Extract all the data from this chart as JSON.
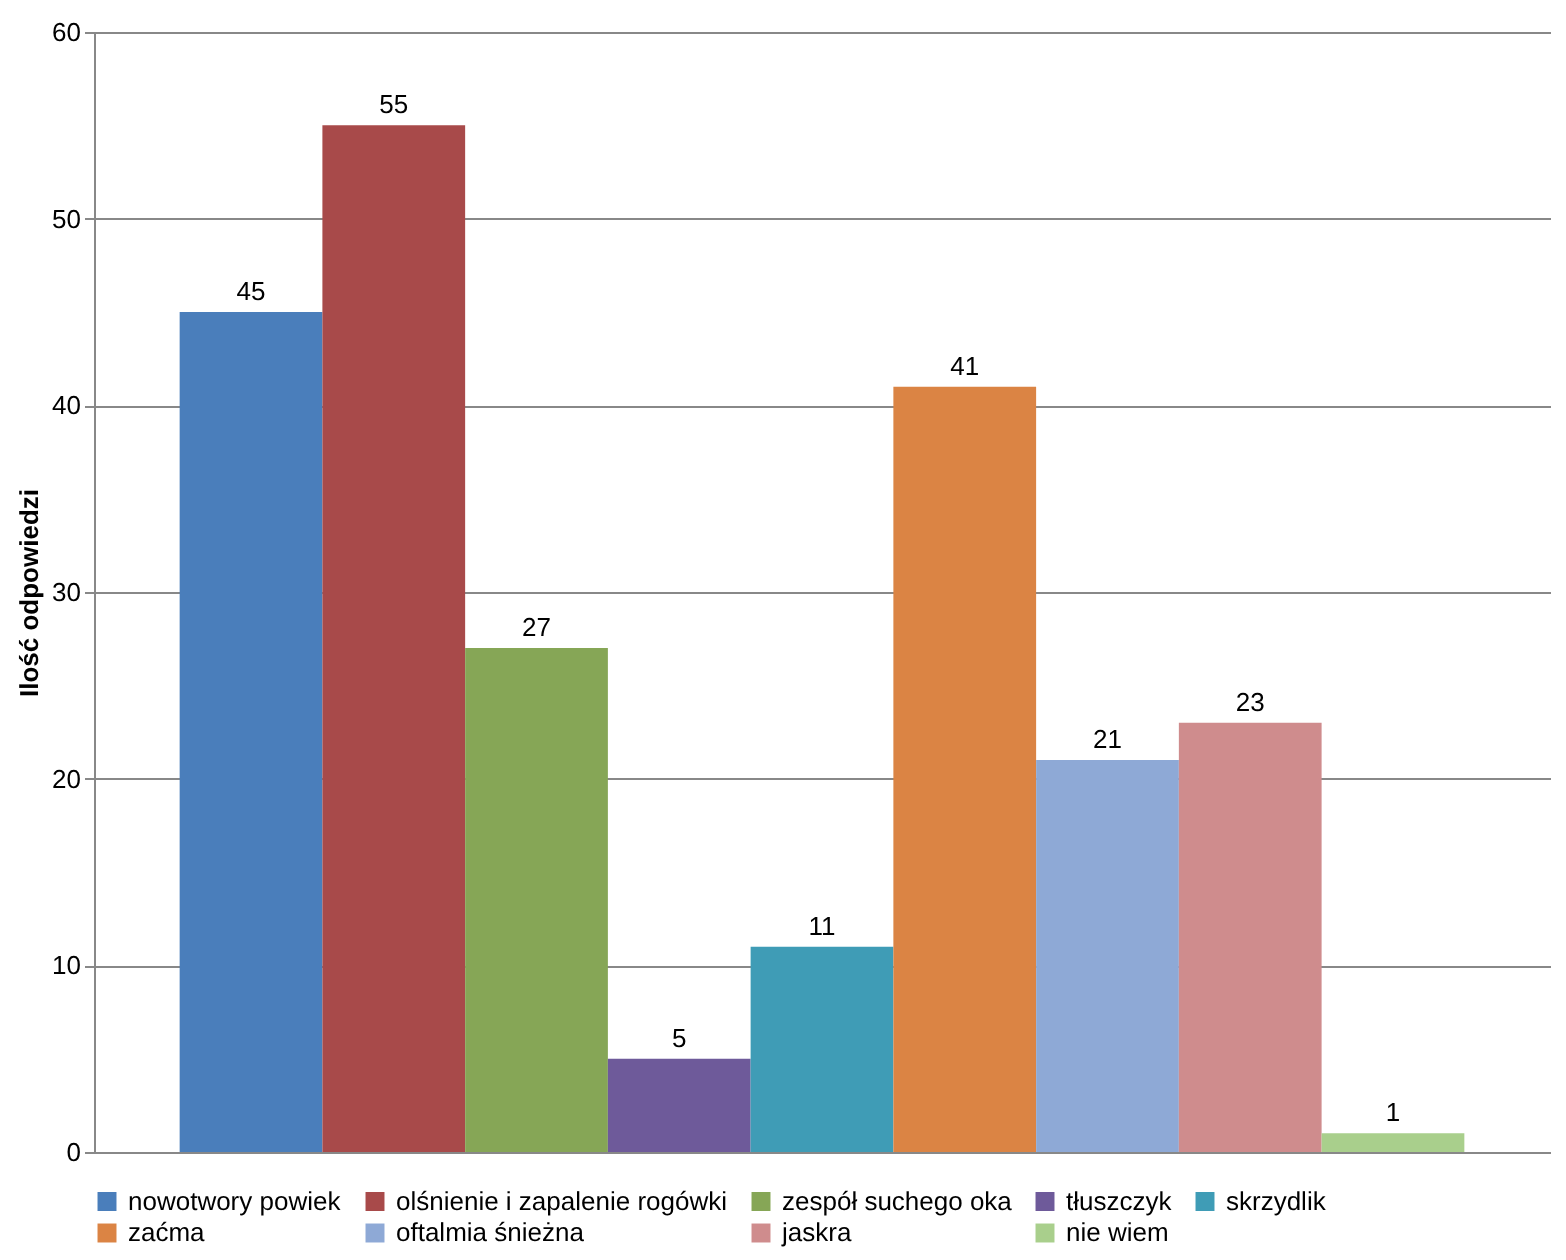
{
  "chart_data": {
    "type": "bar",
    "ylabel": "Ilość odpowiedzi",
    "categories": [
      null
    ],
    "series": [
      {
        "name": "nowotwory powiek",
        "color": "#4a7ebb",
        "values": [
          45
        ]
      },
      {
        "name": "olśnienie i zapalenie rogówki",
        "color": "#a84a4a",
        "values": [
          55
        ]
      },
      {
        "name": "zespół suchego oka",
        "color": "#86a656",
        "values": [
          27
        ]
      },
      {
        "name": "tłuszczyk",
        "color": "#6e5a9a",
        "values": [
          5
        ]
      },
      {
        "name": "skrzydlik",
        "color": "#3f9cb6",
        "values": [
          11
        ]
      },
      {
        "name": "zaćma",
        "color": "#db8444",
        "values": [
          41
        ]
      },
      {
        "name": "oftalmia śnieżna",
        "color": "#8ea9d6",
        "values": [
          21
        ]
      },
      {
        "name": "jaskra",
        "color": "#cf8c8d",
        "values": [
          23
        ]
      },
      {
        "name": "nie wiem",
        "color": "#a9cf8c",
        "values": [
          1
        ]
      }
    ],
    "ylim": [
      0,
      60
    ],
    "yticks": [
      0,
      10,
      20,
      30,
      40,
      50,
      60
    ],
    "grid": "y",
    "legend": "bottom",
    "data_labels": true
  }
}
